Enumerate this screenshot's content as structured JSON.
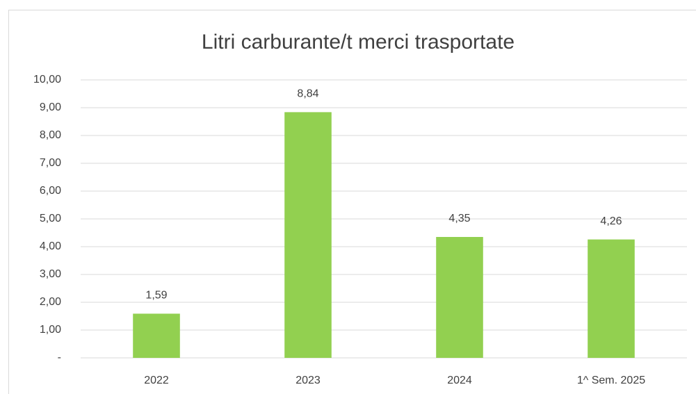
{
  "chart_data": {
    "type": "bar",
    "title": "Litri carburante/t merci trasportate",
    "categories": [
      "2022",
      "2023",
      "2024",
      "1^ Sem. 2025"
    ],
    "values": [
      1.59,
      8.84,
      4.35,
      4.26
    ],
    "value_labels": [
      "1,59",
      "8,84",
      "4,35",
      "4,26"
    ],
    "color": "#92d050",
    "ylim": [
      0,
      10
    ],
    "yticks": [
      {
        "value": 0,
        "label": "-"
      },
      {
        "value": 1,
        "label": "1,00"
      },
      {
        "value": 2,
        "label": "2,00"
      },
      {
        "value": 3,
        "label": "3,00"
      },
      {
        "value": 4,
        "label": "4,00"
      },
      {
        "value": 5,
        "label": "5,00"
      },
      {
        "value": 6,
        "label": "6,00"
      },
      {
        "value": 7,
        "label": "7,00"
      },
      {
        "value": 8,
        "label": "8,00"
      },
      {
        "value": 9,
        "label": "9,00"
      },
      {
        "value": 10,
        "label": "10,00"
      }
    ],
    "grid": true
  }
}
